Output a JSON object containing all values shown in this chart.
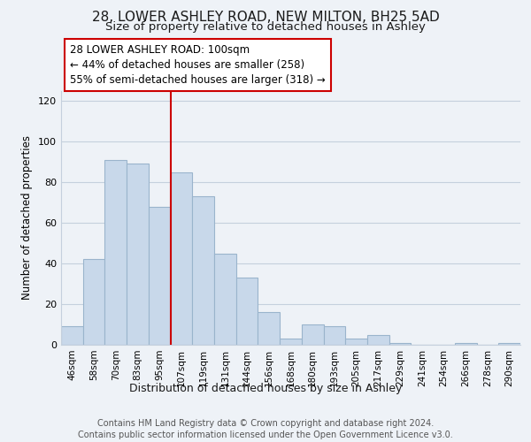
{
  "title": "28, LOWER ASHLEY ROAD, NEW MILTON, BH25 5AD",
  "subtitle": "Size of property relative to detached houses in Ashley",
  "xlabel": "Distribution of detached houses by size in Ashley",
  "ylabel": "Number of detached properties",
  "categories": [
    "46sqm",
    "58sqm",
    "70sqm",
    "83sqm",
    "95sqm",
    "107sqm",
    "119sqm",
    "131sqm",
    "144sqm",
    "156sqm",
    "168sqm",
    "180sqm",
    "193sqm",
    "205sqm",
    "217sqm",
    "229sqm",
    "241sqm",
    "254sqm",
    "266sqm",
    "278sqm",
    "290sqm"
  ],
  "values": [
    9,
    42,
    91,
    89,
    68,
    85,
    73,
    45,
    33,
    16,
    3,
    10,
    9,
    3,
    5,
    1,
    0,
    0,
    1,
    0,
    1
  ],
  "bar_color": "#c8d8ea",
  "bar_edge_color": "#9ab4cc",
  "vline_x": 5,
  "vline_color": "#cc0000",
  "annotation_box_text": "28 LOWER ASHLEY ROAD: 100sqm\n← 44% of detached houses are smaller (258)\n55% of semi-detached houses are larger (318) →",
  "ylim": [
    0,
    125
  ],
  "yticks": [
    0,
    20,
    40,
    60,
    80,
    100,
    120
  ],
  "background_color": "#eef2f7",
  "plot_bg_color": "#eef2f7",
  "grid_color": "#c5d0dd",
  "footer_line1": "Contains HM Land Registry data © Crown copyright and database right 2024.",
  "footer_line2": "Contains public sector information licensed under the Open Government Licence v3.0.",
  "title_fontsize": 11,
  "subtitle_fontsize": 9.5,
  "annotation_fontsize": 8.5,
  "footer_fontsize": 7,
  "ylabel_fontsize": 8.5,
  "xlabel_fontsize": 9,
  "tick_fontsize": 7.5,
  "ytick_fontsize": 8
}
